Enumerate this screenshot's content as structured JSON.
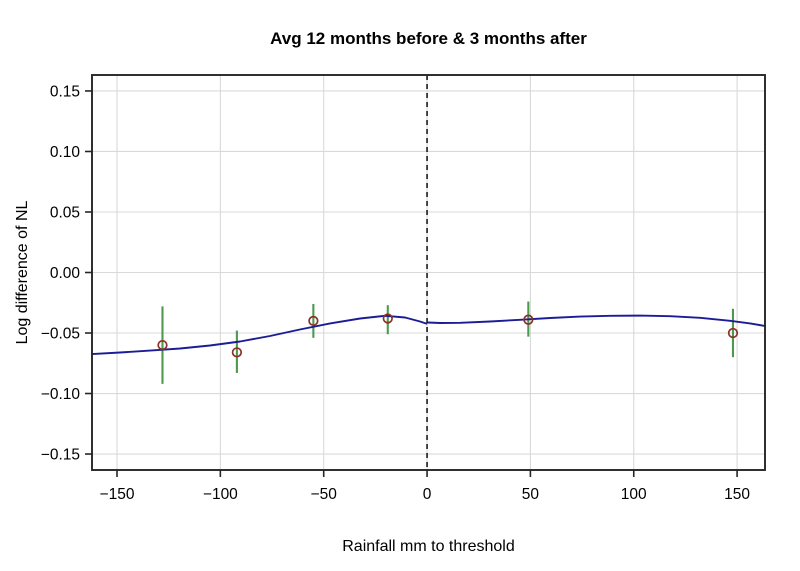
{
  "title": "Avg 12 months before & 3 months after",
  "colors": {
    "fit_line": "#1c1c96",
    "error_bar": "#4e9850",
    "point_outline": "#8b3226",
    "gridline": "#d9d9d9",
    "axis_box": "#262626",
    "threshold_line": "#1a1a1a",
    "background": "#ffffff"
  },
  "chart_data": {
    "type": "scatter",
    "title": "Avg 12 months before & 3 months after",
    "xlabel": "Rainfall mm to threshold",
    "ylabel": "Log difference of NL",
    "xlim": [
      -162.1,
      163.5
    ],
    "ylim": [
      -0.1632,
      0.1632
    ],
    "grid": true,
    "legend": "none",
    "xticks": [
      -150,
      -100,
      -50,
      0,
      50,
      100,
      150
    ],
    "xtick_labels": [
      "−150",
      "−100",
      "−50",
      "0",
      "50",
      "100",
      "150"
    ],
    "yticks": [
      -0.15,
      -0.1,
      -0.05,
      0.0,
      0.05,
      0.1,
      0.15
    ],
    "ytick_labels": [
      "−0.15",
      "−0.10",
      "−0.05",
      "0.00",
      "0.05",
      "0.10",
      "0.15"
    ],
    "threshold_vline": {
      "x": 0,
      "style": "dashed"
    },
    "points": [
      {
        "x": -128,
        "y": -0.06,
        "ci_low": -0.092,
        "ci_high": -0.028
      },
      {
        "x": -92,
        "y": -0.066,
        "ci_low": -0.083,
        "ci_high": -0.048
      },
      {
        "x": -55,
        "y": -0.04,
        "ci_low": -0.054,
        "ci_high": -0.026
      },
      {
        "x": -19,
        "y": -0.038,
        "ci_low": -0.051,
        "ci_high": -0.027
      },
      {
        "x": 49,
        "y": -0.039,
        "ci_low": -0.053,
        "ci_high": -0.024
      },
      {
        "x": 148,
        "y": -0.05,
        "ci_low": -0.07,
        "ci_high": -0.03
      }
    ],
    "fit_line": {
      "left_branch": [
        [
          -162.1,
          -0.0674
        ],
        [
          -148.5,
          -0.0661
        ],
        [
          -134.0,
          -0.0645
        ],
        [
          -119.5,
          -0.0628
        ],
        [
          -105.0,
          -0.0603
        ],
        [
          -90.5,
          -0.057
        ],
        [
          -76.0,
          -0.0525
        ],
        [
          -61.5,
          -0.0471
        ],
        [
          -46.9,
          -0.0421
        ],
        [
          -32.4,
          -0.038
        ],
        [
          -20.3,
          -0.0358
        ],
        [
          -10.6,
          -0.0372
        ],
        [
          -3.4,
          -0.0405
        ],
        [
          -0.3,
          -0.0422
        ]
      ],
      "right_branch": [
        [
          0.3,
          -0.0413
        ],
        [
          6.3,
          -0.0417
        ],
        [
          16.0,
          -0.0416
        ],
        [
          30.5,
          -0.0405
        ],
        [
          45.0,
          -0.0391
        ],
        [
          59.5,
          -0.0376
        ],
        [
          74.0,
          -0.0364
        ],
        [
          88.5,
          -0.0358
        ],
        [
          103.1,
          -0.0356
        ],
        [
          117.6,
          -0.0361
        ],
        [
          132.1,
          -0.0374
        ],
        [
          146.6,
          -0.0399
        ],
        [
          156.3,
          -0.0421
        ],
        [
          163.5,
          -0.0442
        ]
      ]
    }
  }
}
